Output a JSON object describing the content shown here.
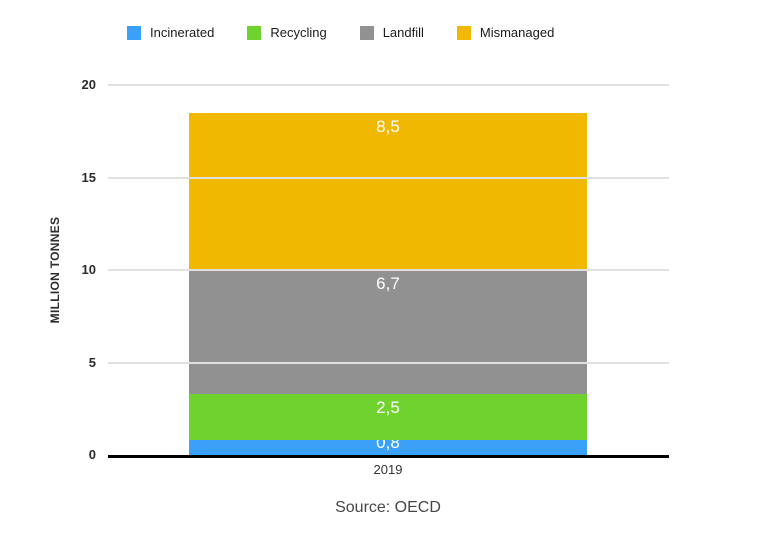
{
  "chart_data": {
    "type": "bar",
    "stacked": true,
    "categories": [
      "2019"
    ],
    "series": [
      {
        "name": "Incinerated",
        "values": [
          0.8
        ],
        "label": "0,8",
        "color": "#3BA0F8"
      },
      {
        "name": "Recycling",
        "values": [
          2.5
        ],
        "label": "2,5",
        "color": "#70D22F"
      },
      {
        "name": "Landfill",
        "values": [
          6.7
        ],
        "label": "6,7",
        "color": "#919191"
      },
      {
        "name": "Mismanaged",
        "values": [
          8.5
        ],
        "label": "8,5",
        "color": "#F0B800"
      }
    ],
    "xlabel": "",
    "ylabel": "MILLION TONNES",
    "ylim": [
      0,
      20
    ],
    "yticks": [
      0,
      5,
      10,
      15,
      20
    ],
    "grid": true,
    "legend_position": "top",
    "value_label_color": "#ffffff",
    "gridline_color": "#e0e0e0",
    "axis_line_color": "#000000",
    "source": "Source: OECD"
  }
}
